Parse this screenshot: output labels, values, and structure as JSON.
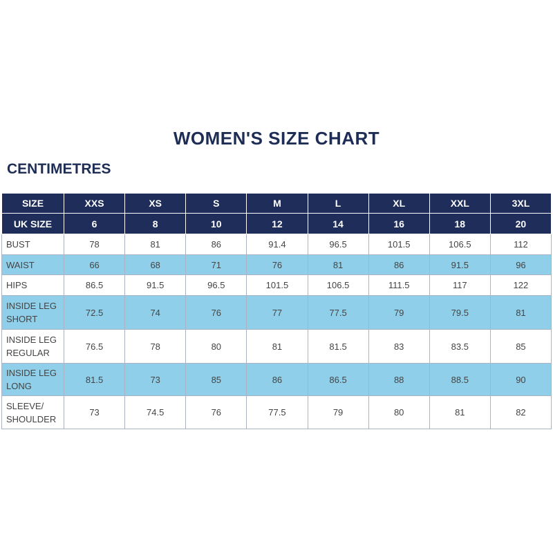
{
  "title": "WOMEN'S SIZE CHART",
  "subtitle": "CENTIMETRES",
  "table": {
    "header": [
      "SIZE",
      "XXS",
      "XS",
      "S",
      "M",
      "L",
      "XL",
      "XXL",
      "3XL"
    ],
    "subheader": [
      "UK SIZE",
      6,
      8,
      10,
      12,
      14,
      16,
      18,
      20
    ],
    "rows": [
      {
        "label": [
          "BUST"
        ],
        "values": [
          78,
          81,
          86,
          91.4,
          96.5,
          101.5,
          106.5,
          112
        ]
      },
      {
        "label": [
          "WAIST"
        ],
        "values": [
          66,
          68,
          71,
          76,
          81,
          86,
          91.5,
          96
        ]
      },
      {
        "label": [
          "HIPS"
        ],
        "values": [
          86.5,
          91.5,
          96.5,
          101.5,
          106.5,
          111.5,
          117,
          122
        ]
      },
      {
        "label": [
          "INSIDE LEG",
          "SHORT"
        ],
        "values": [
          72.5,
          74,
          76,
          77,
          77.5,
          79,
          79.5,
          81
        ]
      },
      {
        "label": [
          "INSIDE LEG",
          "REGULAR"
        ],
        "values": [
          76.5,
          78,
          80,
          81,
          81.5,
          83,
          83.5,
          85
        ]
      },
      {
        "label": [
          "INSIDE LEG",
          "LONG"
        ],
        "values": [
          81.5,
          73,
          85,
          86,
          86.5,
          88,
          88.5,
          90
        ]
      },
      {
        "label": [
          "SLEEVE/",
          "SHOULDER"
        ],
        "values": [
          73,
          74.5,
          76,
          77.5,
          79,
          80,
          81,
          82
        ]
      }
    ]
  }
}
